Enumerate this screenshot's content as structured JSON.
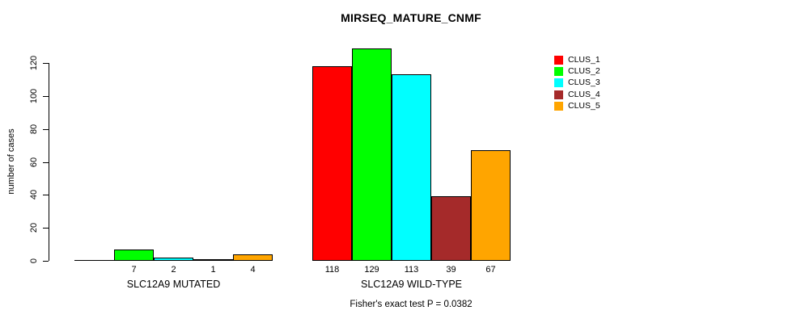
{
  "title": "MIRSEQ_MATURE_CNMF",
  "footer": "Fisher's exact test P = 0.0382",
  "y_axis": {
    "label": "number of cases"
  },
  "legend": {
    "items": [
      {
        "label": "CLUS_1",
        "color": "#ff0000"
      },
      {
        "label": "CLUS_2",
        "color": "#00ff00"
      },
      {
        "label": "CLUS_3",
        "color": "#00ffff"
      },
      {
        "label": "CLUS_4",
        "color": "#a52a2a"
      },
      {
        "label": "CLUS_5",
        "color": "#ffa500"
      }
    ]
  },
  "chart_data": {
    "type": "bar",
    "title": "MIRSEQ_MATURE_CNMF",
    "xlabel": "",
    "ylabel": "number of cases",
    "ylim": [
      0,
      129
    ],
    "y_ticks": [
      0,
      20,
      40,
      60,
      80,
      100,
      120
    ],
    "grid": false,
    "legend_position": "top-right",
    "series_names": [
      "CLUS_1",
      "CLUS_2",
      "CLUS_3",
      "CLUS_4",
      "CLUS_5"
    ],
    "series_colors": [
      "#ff0000",
      "#00ff00",
      "#00ffff",
      "#a52a2a",
      "#ffa500"
    ],
    "groups": [
      {
        "label": "SLC12A9 MUTATED",
        "values": [
          0,
          7,
          2,
          1,
          4
        ],
        "bar_labels": [
          "",
          "7",
          "2",
          "1",
          "4"
        ]
      },
      {
        "label": "SLC12A9 WILD-TYPE",
        "values": [
          118,
          129,
          113,
          39,
          67
        ],
        "bar_labels": [
          "118",
          "129",
          "113",
          "39",
          "67"
        ]
      }
    ],
    "annotation": "Fisher's exact test P = 0.0382"
  }
}
